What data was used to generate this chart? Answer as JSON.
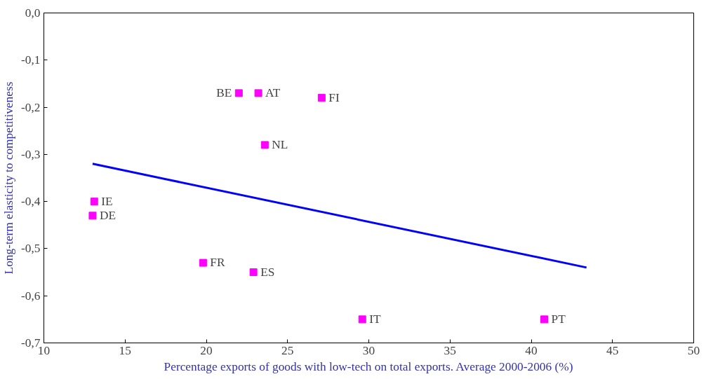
{
  "chart_data": {
    "type": "scatter",
    "xlabel": "Percentage exports of goods with low-tech on total exports. Average 2000-2006 (%)",
    "ylabel": "Long-term elasticity to competitiveness",
    "xlim": [
      10,
      50
    ],
    "xticks": [
      10,
      15,
      20,
      25,
      30,
      35,
      40,
      45,
      50
    ],
    "ylim": [
      -0.7,
      0
    ],
    "yticks": [
      {
        "value": 0,
        "label": "0,0"
      },
      {
        "value": -0.1,
        "label": "-0,1"
      },
      {
        "value": -0.2,
        "label": "-0,2"
      },
      {
        "value": -0.3,
        "label": "-0,3"
      },
      {
        "value": -0.4,
        "label": "-0,4"
      },
      {
        "value": -0.5,
        "label": "-0,5"
      },
      {
        "value": -0.6,
        "label": "-0,6"
      },
      {
        "value": -0.7,
        "label": "-0,7"
      }
    ],
    "grid": false,
    "series": [
      {
        "marker": "square",
        "color": "#ff00ff",
        "x": [
          22.0,
          23.2,
          27.1,
          23.6,
          13.1,
          13.0,
          19.8,
          22.9,
          29.6,
          40.8
        ],
        "values": [
          -0.17,
          -0.17,
          -0.18,
          -0.28,
          -0.4,
          -0.43,
          -0.53,
          -0.55,
          -0.65,
          -0.65
        ]
      },
      {
        "type": "line",
        "color": "#0000ff",
        "x": [
          13.0,
          43.4
        ],
        "values": [
          -0.32,
          -0.54
        ]
      }
    ],
    "annotations": [
      {
        "text": "BE",
        "x": 22.0,
        "y": -0.17
      },
      {
        "text": "AT",
        "x": 23.2,
        "y": -0.17
      },
      {
        "text": "FI",
        "x": 27.1,
        "y": -0.18
      },
      {
        "text": "NL",
        "x": 23.6,
        "y": -0.28
      },
      {
        "text": "IE",
        "x": 13.1,
        "y": -0.4
      },
      {
        "text": "DE",
        "x": 13.0,
        "y": -0.43
      },
      {
        "text": "FR",
        "x": 19.8,
        "y": -0.53
      },
      {
        "text": "ES",
        "x": 22.9,
        "y": -0.55
      },
      {
        "text": "IT",
        "x": 29.6,
        "y": -0.65
      },
      {
        "text": "PT",
        "x": 40.8,
        "y": -0.65
      }
    ]
  }
}
